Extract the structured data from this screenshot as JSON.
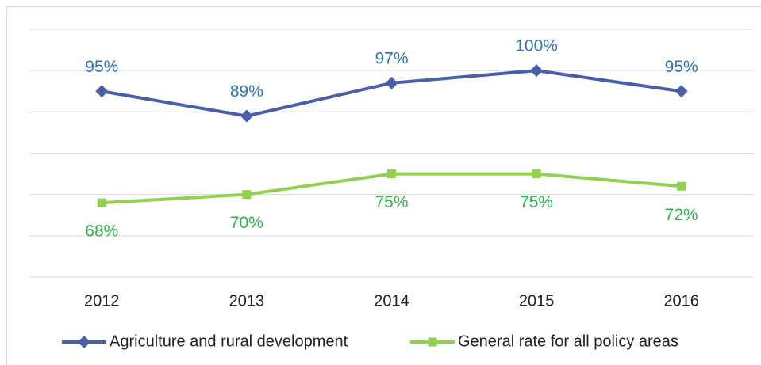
{
  "chart_data": {
    "type": "line",
    "categories": [
      "2012",
      "2013",
      "2014",
      "2015",
      "2016"
    ],
    "series": [
      {
        "name": "Agriculture and rural development",
        "color": "#4a5fa8",
        "label_color": "#2e75b6",
        "marker": "diamond",
        "values": [
          95,
          89,
          97,
          100,
          95
        ],
        "value_labels": [
          "95%",
          "89%",
          "97%",
          "100%",
          "95%"
        ]
      },
      {
        "name": "General rate for all policy areas",
        "color": "#92d050",
        "label_color": "#2db34a",
        "marker": "square",
        "values": [
          68,
          70,
          75,
          75,
          72
        ],
        "value_labels": [
          "68%",
          "70%",
          "75%",
          "75%",
          "72%"
        ]
      }
    ],
    "ylim": [
      50,
      110
    ],
    "yticks": [
      50,
      60,
      70,
      80,
      90,
      100,
      110
    ],
    "grid": true,
    "legend": "bottom"
  }
}
